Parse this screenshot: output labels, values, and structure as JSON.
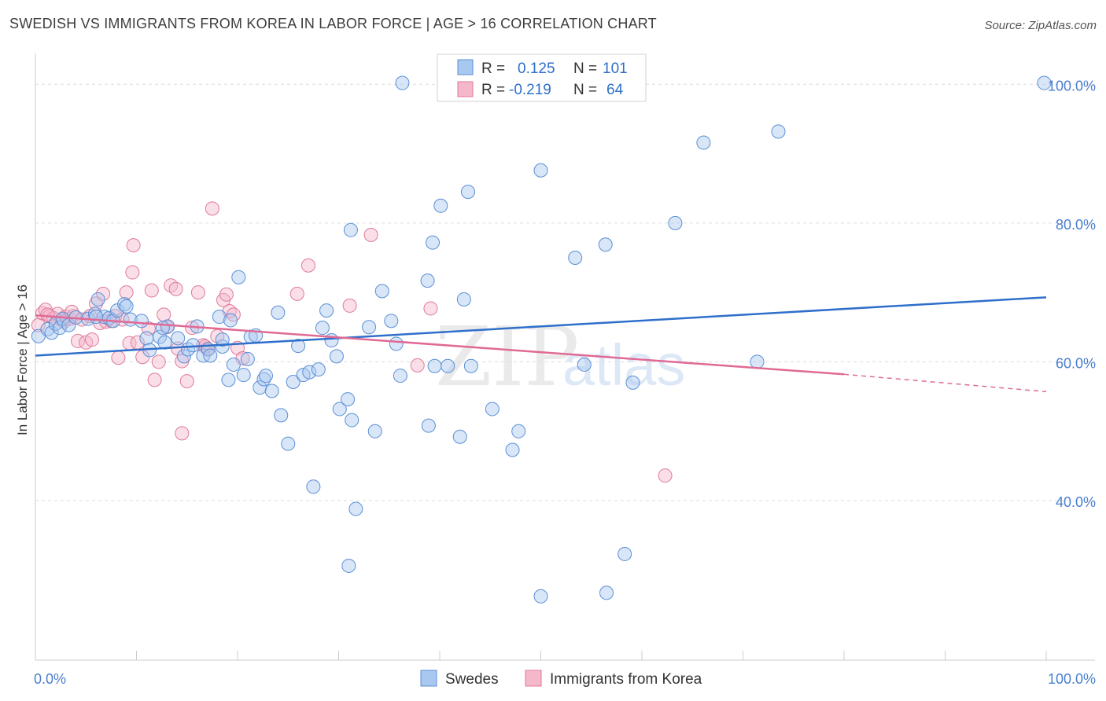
{
  "title": "SWEDISH VS IMMIGRANTS FROM KOREA IN LABOR FORCE | AGE > 16 CORRELATION CHART",
  "source": "Source: ZipAtlas.com",
  "watermark": {
    "zip": "ZIP",
    "atlas": "atlas"
  },
  "colors": {
    "swedes_fill": "#a8c8f0",
    "swedes_stroke": "#5b8fd6",
    "swedes_line": "#2f6fca",
    "korea_fill": "#f5b8cb",
    "korea_stroke": "#e07a9a",
    "korea_line": "#e06a95",
    "label_blue": "#4a7fd0"
  },
  "legend_box": {
    "rows": [
      {
        "r_label": "R =",
        "r_value": "0.125",
        "n_label": "N =",
        "n_value": "101"
      },
      {
        "r_label": "R =",
        "r_value": "-0.219",
        "n_label": "N =",
        "n_value": "64"
      }
    ]
  },
  "bottom_legend": [
    "Swedes",
    "Immigrants from Korea"
  ],
  "chart_data": {
    "type": "scatter",
    "ylabel": "In Labor Force | Age > 16",
    "xlabel": "",
    "xlim": [
      0,
      100
    ],
    "ylim": [
      17,
      104
    ],
    "x_tick_labels": [
      "0.0%",
      "100.0%"
    ],
    "y_ticks": [
      40,
      60,
      80,
      100
    ],
    "y_tick_labels": [
      "40.0%",
      "60.0%",
      "80.0%",
      "100.0%"
    ],
    "grid": "horizontal dashed",
    "legend_placement": "top-center",
    "series": [
      {
        "name": "Swedes",
        "R": 0.125,
        "N": 101,
        "trend": {
          "x": [
            0,
            100
          ],
          "y": [
            60.9,
            69.3
          ]
        },
        "points": [
          [
            0.3,
            63.7
          ],
          [
            1.2,
            64.7
          ],
          [
            1.6,
            64.2
          ],
          [
            2.0,
            65.5
          ],
          [
            2.4,
            64.9
          ],
          [
            2.7,
            66.2
          ],
          [
            3.3,
            65.3
          ],
          [
            4.0,
            66.4
          ],
          [
            5.2,
            66.2
          ],
          [
            5.9,
            66.9
          ],
          [
            6.2,
            69.0
          ],
          [
            6.8,
            66.5
          ],
          [
            7.3,
            66.3
          ],
          [
            7.7,
            65.9
          ],
          [
            8.1,
            67.4
          ],
          [
            8.8,
            68.3
          ],
          [
            9.0,
            68.0
          ],
          [
            9.4,
            66.1
          ],
          [
            10.5,
            65.9
          ],
          [
            11.0,
            63.4
          ],
          [
            11.3,
            61.7
          ],
          [
            12.3,
            63.6
          ],
          [
            12.8,
            62.8
          ],
          [
            13.1,
            65.1
          ],
          [
            14.1,
            63.4
          ],
          [
            14.7,
            60.8
          ],
          [
            15.1,
            61.8
          ],
          [
            15.6,
            62.4
          ],
          [
            16.0,
            65.1
          ],
          [
            16.6,
            60.9
          ],
          [
            17.1,
            61.8
          ],
          [
            17.3,
            60.9
          ],
          [
            18.2,
            66.5
          ],
          [
            18.5,
            62.2
          ],
          [
            19.1,
            57.4
          ],
          [
            19.3,
            66.0
          ],
          [
            19.6,
            59.6
          ],
          [
            20.1,
            72.2
          ],
          [
            20.6,
            58.1
          ],
          [
            21.3,
            63.6
          ],
          [
            21.8,
            63.8
          ],
          [
            22.2,
            56.3
          ],
          [
            22.6,
            57.5
          ],
          [
            22.8,
            58.0
          ],
          [
            23.4,
            55.8
          ],
          [
            24.0,
            67.1
          ],
          [
            24.3,
            52.3
          ],
          [
            25.0,
            48.2
          ],
          [
            25.5,
            57.1
          ],
          [
            26.0,
            62.3
          ],
          [
            26.5,
            58.1
          ],
          [
            27.1,
            58.5
          ],
          [
            27.5,
            42.0
          ],
          [
            28.0,
            58.9
          ],
          [
            28.4,
            64.9
          ],
          [
            28.8,
            67.4
          ],
          [
            29.3,
            63.1
          ],
          [
            29.8,
            60.8
          ],
          [
            30.1,
            53.2
          ],
          [
            30.9,
            54.6
          ],
          [
            31.2,
            79.0
          ],
          [
            31.3,
            51.6
          ],
          [
            31.7,
            38.8
          ],
          [
            31.0,
            30.6
          ],
          [
            33.0,
            65.0
          ],
          [
            33.6,
            50.0
          ],
          [
            34.3,
            70.2
          ],
          [
            35.2,
            65.9
          ],
          [
            35.7,
            62.6
          ],
          [
            36.1,
            58.0
          ],
          [
            38.8,
            71.7
          ],
          [
            38.9,
            50.8
          ],
          [
            39.3,
            77.2
          ],
          [
            39.5,
            59.4
          ],
          [
            40.1,
            82.5
          ],
          [
            40.8,
            59.4
          ],
          [
            42.0,
            49.2
          ],
          [
            42.4,
            69.0
          ],
          [
            42.8,
            84.5
          ],
          [
            43.1,
            59.4
          ],
          [
            45.2,
            53.2
          ],
          [
            47.2,
            47.3
          ],
          [
            47.8,
            50.0
          ],
          [
            50.0,
            26.2
          ],
          [
            50.0,
            87.6
          ],
          [
            53.4,
            75.0
          ],
          [
            54.3,
            59.6
          ],
          [
            56.4,
            76.9
          ],
          [
            56.5,
            26.7
          ],
          [
            58.3,
            32.3
          ],
          [
            59.1,
            57.0
          ],
          [
            63.3,
            80.0
          ],
          [
            66.1,
            91.6
          ],
          [
            71.4,
            60.0
          ],
          [
            73.5,
            93.2
          ],
          [
            99.8,
            100.2
          ],
          [
            36.3,
            100.2
          ],
          [
            6.0,
            66.5
          ],
          [
            12.6,
            64.9
          ],
          [
            18.5,
            63.2
          ],
          [
            21.0,
            60.4
          ]
        ]
      },
      {
        "name": "Immigrants from Korea",
        "R": -0.219,
        "N": 64,
        "trend": {
          "x": [
            0,
            80
          ],
          "y": [
            66.7,
            58.2
          ]
        },
        "trend_dashed": {
          "x": [
            80,
            100
          ],
          "y": [
            58.2,
            55.7
          ]
        },
        "points": [
          [
            0.3,
            65.3
          ],
          [
            0.7,
            67.0
          ],
          [
            1.0,
            67.5
          ],
          [
            1.4,
            66.6
          ],
          [
            1.8,
            66.3
          ],
          [
            2.2,
            66.9
          ],
          [
            2.6,
            66.0
          ],
          [
            3.0,
            66.5
          ],
          [
            3.4,
            66.2
          ],
          [
            3.8,
            66.6
          ],
          [
            4.2,
            63.0
          ],
          [
            4.6,
            66.1
          ],
          [
            5.0,
            62.8
          ],
          [
            5.4,
            66.6
          ],
          [
            5.6,
            63.2
          ],
          [
            6.0,
            68.4
          ],
          [
            6.4,
            65.6
          ],
          [
            6.7,
            69.8
          ],
          [
            7.0,
            65.8
          ],
          [
            7.5,
            65.9
          ],
          [
            7.9,
            66.6
          ],
          [
            8.2,
            60.6
          ],
          [
            8.6,
            66.1
          ],
          [
            9.0,
            70.0
          ],
          [
            9.3,
            62.7
          ],
          [
            9.6,
            72.9
          ],
          [
            9.7,
            76.8
          ],
          [
            10.1,
            62.8
          ],
          [
            10.6,
            60.7
          ],
          [
            11.2,
            64.8
          ],
          [
            11.5,
            70.3
          ],
          [
            11.8,
            57.4
          ],
          [
            12.2,
            60.0
          ],
          [
            12.7,
            66.8
          ],
          [
            13.0,
            65.0
          ],
          [
            13.4,
            71.0
          ],
          [
            13.9,
            70.5
          ],
          [
            14.1,
            61.9
          ],
          [
            14.5,
            49.7
          ],
          [
            15.0,
            57.2
          ],
          [
            15.5,
            64.9
          ],
          [
            16.1,
            70.0
          ],
          [
            16.6,
            62.4
          ],
          [
            17.0,
            61.9
          ],
          [
            17.5,
            82.1
          ],
          [
            18.0,
            63.7
          ],
          [
            18.6,
            68.9
          ],
          [
            18.9,
            69.7
          ],
          [
            19.2,
            67.3
          ],
          [
            19.6,
            66.8
          ],
          [
            20.0,
            62.0
          ],
          [
            20.5,
            60.5
          ],
          [
            25.9,
            69.8
          ],
          [
            27.0,
            73.9
          ],
          [
            31.1,
            68.1
          ],
          [
            33.2,
            78.3
          ],
          [
            37.8,
            59.5
          ],
          [
            39.1,
            67.7
          ],
          [
            62.3,
            43.6
          ],
          [
            14.5,
            60.1
          ],
          [
            3.6,
            67.2
          ],
          [
            1.2,
            66.8
          ],
          [
            2.8,
            65.8
          ],
          [
            16.8,
            62.2
          ]
        ]
      }
    ]
  }
}
